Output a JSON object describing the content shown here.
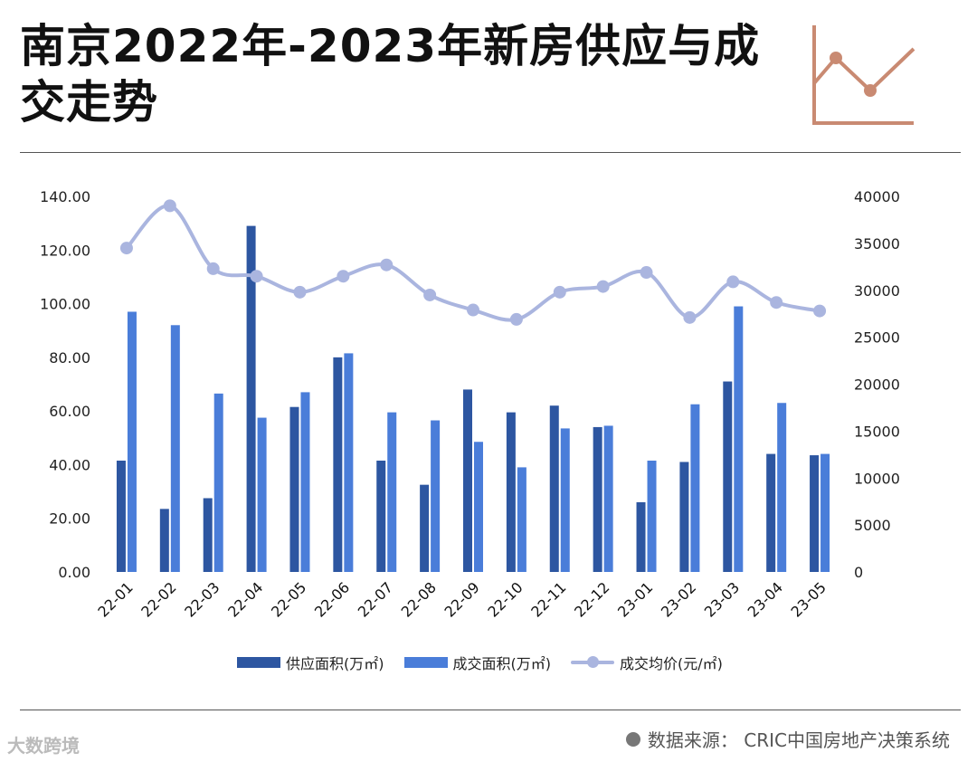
{
  "header": {
    "title": "南京2022年-2023年新房供应与成交走势",
    "icon": "line-chart-icon",
    "icon_color": "#c98a72"
  },
  "source": "数据来源：  CRIC中国房地产决策系统",
  "watermark": "大数跨境",
  "colors": {
    "supply": "#2d56a1",
    "transaction": "#4a7dd9",
    "price": "#aab5df"
  },
  "chart_data": {
    "type": "bar",
    "categories": [
      "22-01",
      "22-02",
      "22-03",
      "22-04",
      "22-05",
      "22-06",
      "22-07",
      "22-08",
      "22-09",
      "22-10",
      "22-11",
      "22-12",
      "23-01",
      "23-02",
      "23-03",
      "23-04",
      "23-05"
    ],
    "series": [
      {
        "name": "供应面积(万㎡)",
        "type": "bar",
        "axis": "left",
        "values": [
          41.5,
          23.5,
          27.5,
          129,
          61.5,
          80,
          41.5,
          32.5,
          68,
          59.5,
          62,
          54,
          26,
          41,
          71,
          44,
          43.5
        ]
      },
      {
        "name": "成交面积(万㎡)",
        "type": "bar",
        "axis": "left",
        "values": [
          97,
          92,
          66.5,
          57.5,
          67,
          81.5,
          59.5,
          56.5,
          48.5,
          39,
          53.5,
          54.5,
          41.5,
          62.5,
          99,
          63,
          44
        ]
      },
      {
        "name": "成交均价(元/㎡)",
        "type": "line",
        "axis": "right",
        "values": [
          34500,
          39000,
          32300,
          31500,
          29800,
          31500,
          32700,
          29500,
          27900,
          26900,
          29800,
          30400,
          31900,
          27100,
          30900,
          28700,
          27800
        ]
      }
    ],
    "y_left": {
      "min": 0,
      "max": 140,
      "ticks": [
        "0.00",
        "20.00",
        "40.00",
        "60.00",
        "80.00",
        "100.00",
        "120.00",
        "140.00"
      ]
    },
    "y_right": {
      "min": 0,
      "max": 40000,
      "ticks": [
        "0",
        "5000",
        "10000",
        "15000",
        "20000",
        "25000",
        "30000",
        "35000",
        "40000"
      ]
    },
    "legend_position": "bottom",
    "grid": false
  }
}
